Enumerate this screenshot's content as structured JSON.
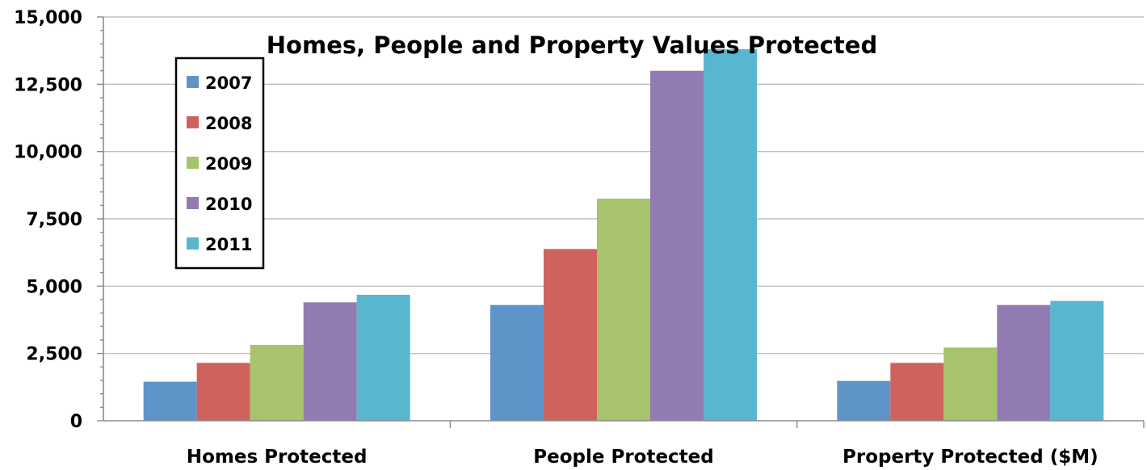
{
  "chart_data": {
    "type": "bar",
    "title": "Homes, People and Property Values Protected",
    "xlabel": "",
    "ylabel": "",
    "categories": [
      "Homes Protected",
      "People Protected",
      "Property Protected ($M)"
    ],
    "series": [
      {
        "name": "2007",
        "color": "#5f94c9",
        "values": [
          1450,
          4300,
          1480
        ]
      },
      {
        "name": "2008",
        "color": "#cf625d",
        "values": [
          2150,
          6380,
          2150
        ]
      },
      {
        "name": "2009",
        "color": "#a7c36b",
        "values": [
          2820,
          8250,
          2720
        ]
      },
      {
        "name": "2010",
        "color": "#927bb3",
        "values": [
          4400,
          13000,
          4300
        ]
      },
      {
        "name": "2011",
        "color": "#58b7cf",
        "values": [
          4680,
          13800,
          4450
        ]
      }
    ],
    "ylim": [
      0,
      15000
    ],
    "yticks": [
      0,
      2500,
      5000,
      7500,
      10000,
      12500,
      15000
    ],
    "ytick_labels": [
      "0",
      "2,500",
      "5,000",
      "7,500",
      "10,000",
      "12,500",
      "15,000"
    ],
    "grid": true,
    "legend": {
      "position": "top-left"
    }
  }
}
